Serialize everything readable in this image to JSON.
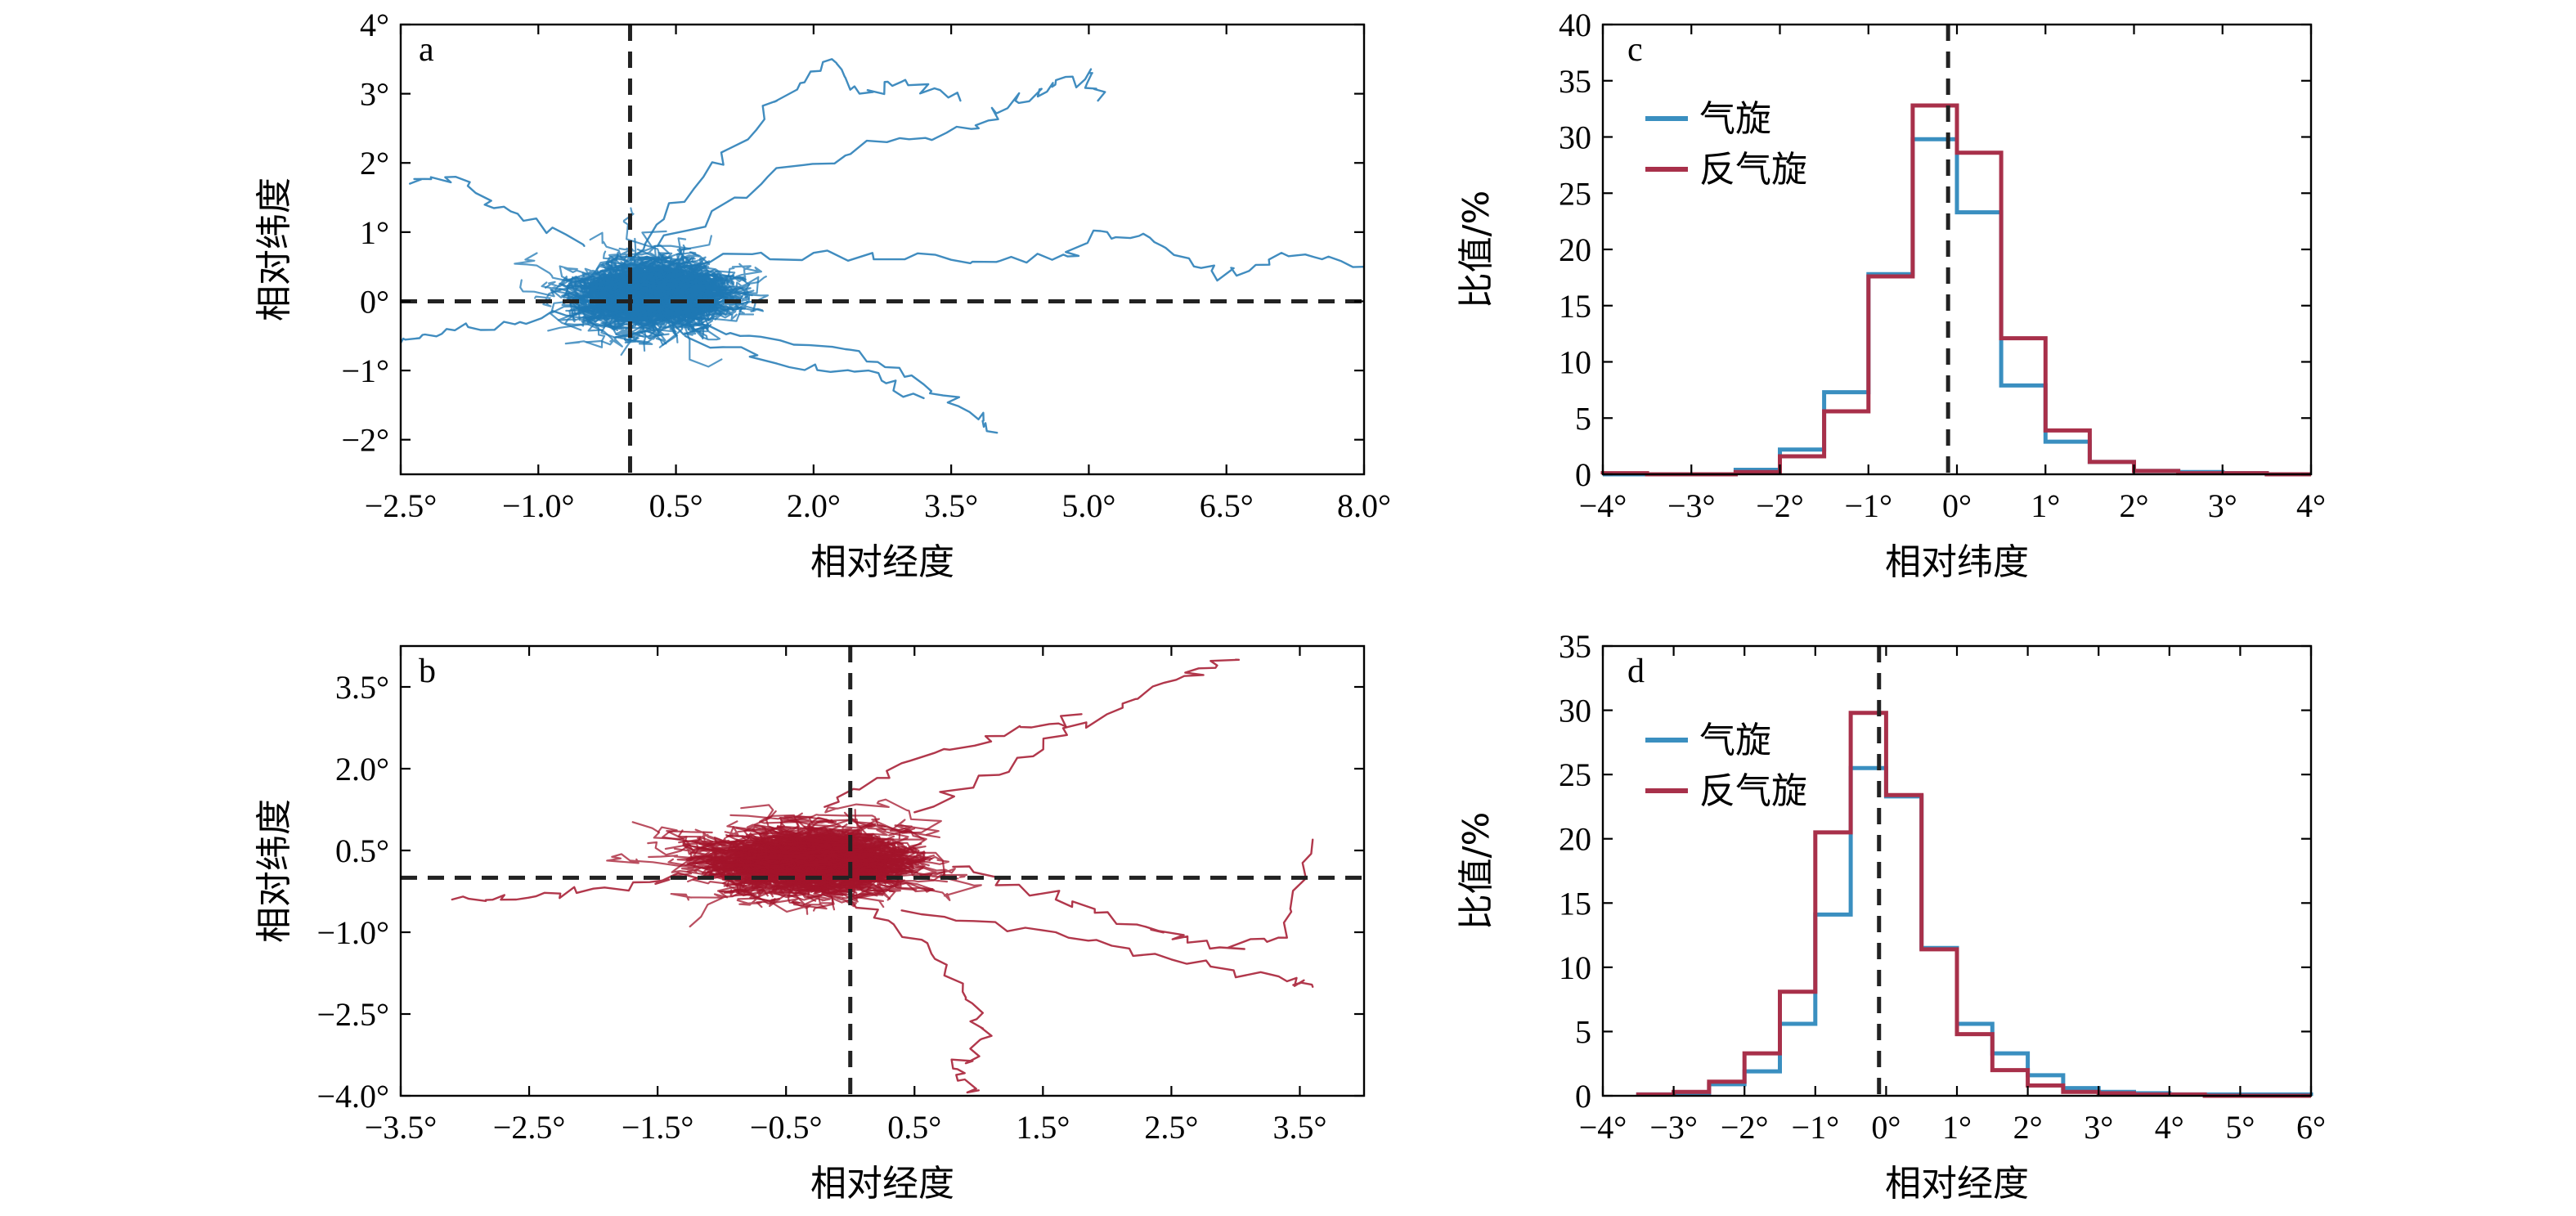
{
  "chart_data": [
    {
      "id": "a",
      "type": "scatter",
      "label": "a",
      "xlabel": "相对经度",
      "ylabel": "相对纬度",
      "xlim": [
        -2.5,
        8.0
      ],
      "ylim": [
        -2.5,
        4.0
      ],
      "xticks": [
        -2.5,
        -1.0,
        0.5,
        2.0,
        3.5,
        5.0,
        6.5,
        8.0
      ],
      "xtick_labels": [
        "−2.5°",
        "−1.0°",
        "0.5°",
        "2.0°",
        "3.5°",
        "5.0°",
        "6.5°",
        "8.0°"
      ],
      "yticks": [
        -2,
        -1,
        0,
        1,
        2,
        3,
        4
      ],
      "ytick_labels": [
        "−2°",
        "−1°",
        "0°",
        "1°",
        "2°",
        "3°",
        "4°"
      ],
      "ref_x": 0,
      "ref_y": 0,
      "color": "#1f78b4",
      "track_count": 260,
      "core": {
        "center_x": 0.2,
        "center_y": 0.1,
        "spread_x": 0.75,
        "spread_y": 0.55
      },
      "outlier_tracks": [
        {
          "x": [
            0.0,
            0.8,
            1.6,
            2.2,
            2.5,
            3.0,
            3.6
          ],
          "y": [
            0.6,
            1.8,
            2.9,
            3.5,
            3.0,
            3.2,
            2.9
          ]
        },
        {
          "x": [
            0.3,
            1.5,
            2.8,
            3.8,
            4.2,
            4.6,
            5.0,
            5.1
          ],
          "y": [
            0.8,
            1.8,
            2.3,
            2.5,
            2.9,
            3.1,
            3.3,
            2.9
          ]
        },
        {
          "x": [
            0.5,
            2.0,
            3.5,
            4.6,
            5.2,
            5.8,
            6.4,
            7.1,
            8.0
          ],
          "y": [
            0.5,
            0.7,
            0.6,
            0.6,
            1.0,
            0.8,
            0.3,
            0.7,
            0.5
          ]
        },
        {
          "x": [
            0.2,
            1.2,
            2.4,
            3.2,
            3.7,
            4.0
          ],
          "y": [
            -0.3,
            -0.5,
            -0.7,
            -1.2,
            -1.6,
            -1.9
          ]
        },
        {
          "x": [
            -0.5,
            -1.3,
            -1.9,
            -2.4
          ],
          "y": [
            0.8,
            1.3,
            1.8,
            1.7
          ]
        },
        {
          "x": [
            -0.3,
            -1.2,
            -2.0,
            -2.5
          ],
          "y": [
            -0.1,
            -0.3,
            -0.4,
            -0.6
          ]
        },
        {
          "x": [
            0.6,
            1.6,
            2.6,
            3.2
          ],
          "y": [
            -0.5,
            -0.9,
            -1.0,
            -1.4
          ]
        }
      ]
    },
    {
      "id": "b",
      "type": "scatter",
      "label": "b",
      "xlabel": "相对经度",
      "ylabel": "相对纬度",
      "xlim": [
        -3.5,
        4.0
      ],
      "ylim": [
        -4.0,
        4.25
      ],
      "xticks": [
        -3.5,
        -2.5,
        -1.5,
        -0.5,
        0.5,
        1.5,
        2.5,
        3.5
      ],
      "xtick_labels": [
        "−3.5°",
        "−2.5°",
        "−1.5°",
        "−0.5°",
        "0.5°",
        "1.5°",
        "2.5°",
        "3.5°"
      ],
      "yticks": [
        -4.0,
        -2.5,
        -1.0,
        0.5,
        2.0,
        3.5
      ],
      "ytick_labels": [
        "−4.0°",
        "−2.5°",
        "−1.0°",
        "0.5°",
        "2.0°",
        "3.5°"
      ],
      "ref_x": 0,
      "ref_y": 0,
      "color": "#a3142b",
      "track_count": 260,
      "core": {
        "center_x": -0.3,
        "center_y": 0.3,
        "spread_x": 0.85,
        "spread_y": 0.65
      },
      "outlier_tracks": [
        {
          "x": [
            0.5,
            1.3,
            2.0,
            2.6,
            3.0
          ],
          "y": [
            1.2,
            2.2,
            3.0,
            3.7,
            4.0
          ]
        },
        {
          "x": [
            0.8,
            1.6,
            2.3,
            2.8,
            3.4,
            3.6
          ],
          "y": [
            0.2,
            -0.4,
            -0.9,
            -1.3,
            -1.1,
            0.7
          ]
        },
        {
          "x": [
            0.0,
            0.6,
            0.9,
            1.1,
            0.8,
            1.0
          ],
          "y": [
            -0.4,
            -1.2,
            -2.2,
            -2.9,
            -3.5,
            -3.9
          ]
        },
        {
          "x": [
            -1.2,
            -2.0,
            -2.6,
            -3.1
          ],
          "y": [
            0.0,
            -0.2,
            -0.4,
            -0.4
          ]
        },
        {
          "x": [
            0.4,
            1.6,
            2.5,
            3.4,
            3.6
          ],
          "y": [
            -0.6,
            -1.0,
            -1.5,
            -1.9,
            -2.0
          ]
        },
        {
          "x": [
            -0.2,
            0.4,
            1.2,
            1.8
          ],
          "y": [
            1.3,
            2.1,
            2.6,
            3.0
          ]
        }
      ]
    },
    {
      "id": "c",
      "type": "line",
      "subtype": "step-histogram",
      "label": "c",
      "xlabel": "相对纬度",
      "ylabel": "比值/%",
      "xlim": [
        -4,
        4
      ],
      "ylim": [
        0,
        40
      ],
      "xticks": [
        -4,
        -3,
        -2,
        -1,
        0,
        1,
        2,
        3,
        4
      ],
      "xtick_labels": [
        "−4°",
        "−3°",
        "−2°",
        "−1°",
        "0°",
        "1°",
        "2°",
        "3°",
        "4°"
      ],
      "yticks": [
        0,
        5,
        10,
        15,
        20,
        25,
        30,
        35,
        40
      ],
      "ytick_labels": [
        "0",
        "5",
        "10",
        "15",
        "20",
        "25",
        "30",
        "35",
        "40"
      ],
      "ref_x": -0.1,
      "legend_position": "top-left",
      "bin_edges": [
        -4.0,
        -3.5,
        -3.0,
        -2.5,
        -2.0,
        -1.5,
        -1.0,
        -0.5,
        0.0,
        0.5,
        1.0,
        1.5,
        2.0,
        2.5,
        3.0,
        3.5,
        4.0
      ],
      "series": [
        {
          "name": "气旋",
          "color": "#3a8fc0",
          "values": [
            0,
            0,
            0,
            0.4,
            2.2,
            7.3,
            17.8,
            29.8,
            23.3,
            7.9,
            2.9,
            1.1,
            0.3,
            0.2,
            0.1,
            0
          ]
        },
        {
          "name": "反气旋",
          "color": "#a8304a",
          "values": [
            0.1,
            0,
            0,
            0.2,
            1.6,
            5.6,
            17.6,
            32.8,
            28.6,
            12.1,
            3.9,
            1.1,
            0.3,
            0.1,
            0.1,
            0
          ]
        }
      ]
    },
    {
      "id": "d",
      "type": "line",
      "subtype": "step-histogram",
      "label": "d",
      "xlabel": "相对经度",
      "ylabel": "比值/%",
      "xlim": [
        -4,
        6
      ],
      "ylim": [
        0,
        35
      ],
      "xticks": [
        -4,
        -3,
        -2,
        -1,
        0,
        1,
        2,
        3,
        4,
        5,
        6
      ],
      "xtick_labels": [
        "−4°",
        "−3°",
        "−2°",
        "−1°",
        "0°",
        "1°",
        "2°",
        "3°",
        "4°",
        "5°",
        "6°"
      ],
      "yticks": [
        0,
        5,
        10,
        15,
        20,
        25,
        30,
        35
      ],
      "ytick_labels": [
        "0",
        "5",
        "10",
        "15",
        "20",
        "25",
        "30",
        "35"
      ],
      "ref_x": -0.1,
      "legend_position": "top-left",
      "bin_edges": [
        -3.5,
        -3.0,
        -2.5,
        -2.0,
        -1.5,
        -1.0,
        -0.5,
        0.0,
        0.5,
        1.0,
        1.5,
        2.0,
        2.5,
        3.0,
        3.5,
        4.0,
        4.5,
        5.0,
        5.5,
        6.0
      ],
      "series": [
        {
          "name": "气旋",
          "color": "#3a8fc0",
          "values": [
            0.1,
            0.2,
            0.9,
            1.9,
            5.6,
            14.1,
            25.5,
            23.3,
            11.5,
            5.6,
            3.3,
            1.6,
            0.6,
            0.3,
            0.2,
            0.1,
            0.1,
            0.1,
            0.1
          ]
        },
        {
          "name": "反气旋",
          "color": "#a8304a",
          "values": [
            0.1,
            0.3,
            1.1,
            3.3,
            8.1,
            20.5,
            29.8,
            23.4,
            11.4,
            4.8,
            2.0,
            0.8,
            0.3,
            0.2,
            0.1,
            0.1,
            0,
            0,
            0
          ]
        }
      ]
    }
  ]
}
